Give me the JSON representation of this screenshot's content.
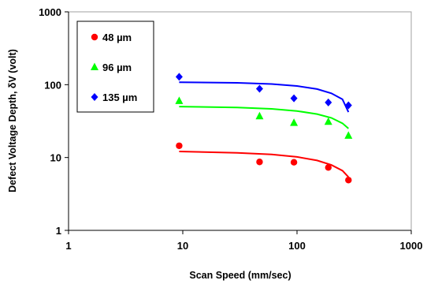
{
  "chart_data": {
    "type": "scatter",
    "title": "",
    "xlabel": "Scan Speed (mm/sec)",
    "ylabel": "Defect Voltage Depth, δV (volt)",
    "xscale": "log",
    "yscale": "log",
    "xlim": [
      1,
      1000
    ],
    "ylim": [
      1,
      1000
    ],
    "xticks": [
      "1",
      "10",
      "100",
      "1000"
    ],
    "yticks": [
      "1",
      "10",
      "100",
      "1000"
    ],
    "grid": false,
    "legend_position": "top-left",
    "series": [
      {
        "name": "48 µm",
        "color": "#ff0000",
        "marker": "circle",
        "x": [
          9.3,
          47,
          94,
          188,
          282
        ],
        "y": [
          14.5,
          8.7,
          8.6,
          7.3,
          4.9
        ],
        "fit_x": [
          9.3,
          30,
          60,
          100,
          150,
          200,
          250,
          282
        ],
        "fit_y": [
          12.1,
          11.6,
          11.0,
          10.2,
          9.1,
          7.9,
          6.6,
          5.4
        ]
      },
      {
        "name": "96 µm",
        "color": "#00ff00",
        "marker": "triangle",
        "x": [
          9.3,
          47,
          94,
          188,
          282
        ],
        "y": [
          60,
          37,
          30,
          31,
          20
        ],
        "fit_x": [
          9.3,
          30,
          60,
          100,
          150,
          200,
          250,
          282
        ],
        "fit_y": [
          50,
          48.5,
          46.5,
          43.5,
          39.5,
          35,
          29.5,
          25
        ]
      },
      {
        "name": "135 µm",
        "color": "#0000ff",
        "marker": "diamond",
        "x": [
          9.3,
          47,
          94,
          188,
          282
        ],
        "y": [
          128,
          88,
          65,
          57,
          52
        ],
        "fit_x": [
          9.3,
          30,
          60,
          100,
          150,
          200,
          250,
          282
        ],
        "fit_y": [
          108,
          106,
          102,
          96,
          87,
          76,
          63,
          42
        ]
      }
    ]
  }
}
